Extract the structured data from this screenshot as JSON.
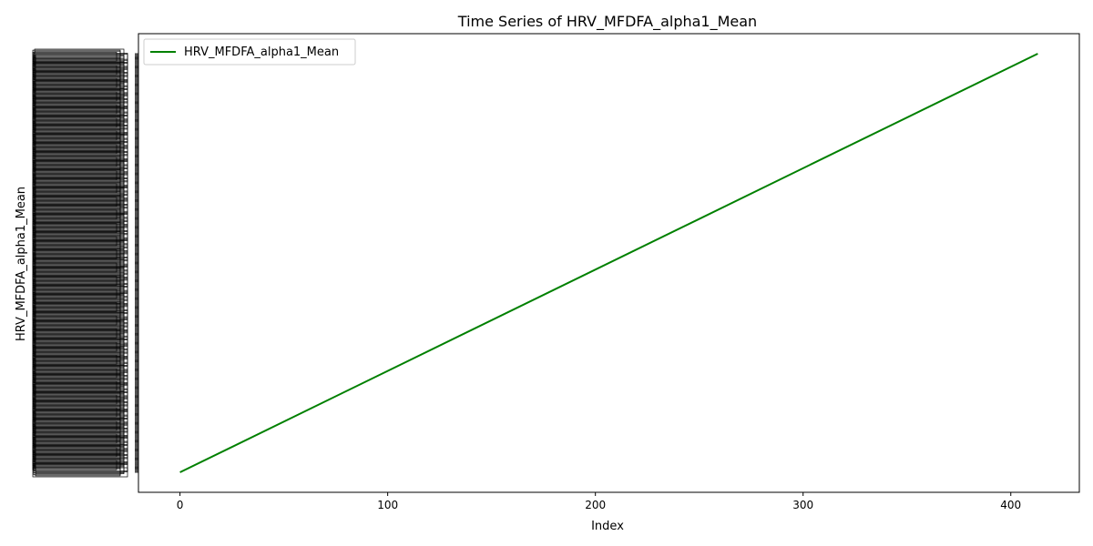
{
  "chart_data": {
    "type": "line",
    "title": "Time Series of HRV_MFDFA_alpha1_Mean",
    "xlabel": "Index",
    "ylabel": "HRV_MFDFA_alpha1_Mean",
    "xlim": [
      -20,
      433
    ],
    "x_ticks": [
      0,
      100,
      200,
      300,
      400
    ],
    "y_axis": "categorical",
    "y_category_count": 414,
    "y_tick_labels_note": "tick labels overlap and are illegible",
    "grid": false,
    "legend": {
      "position": "top-left"
    },
    "series": [
      {
        "name": "HRV_MFDFA_alpha1_Mean",
        "color": "#008000",
        "x": [
          0,
          413
        ],
        "y_category_index": [
          0,
          413
        ]
      }
    ]
  }
}
